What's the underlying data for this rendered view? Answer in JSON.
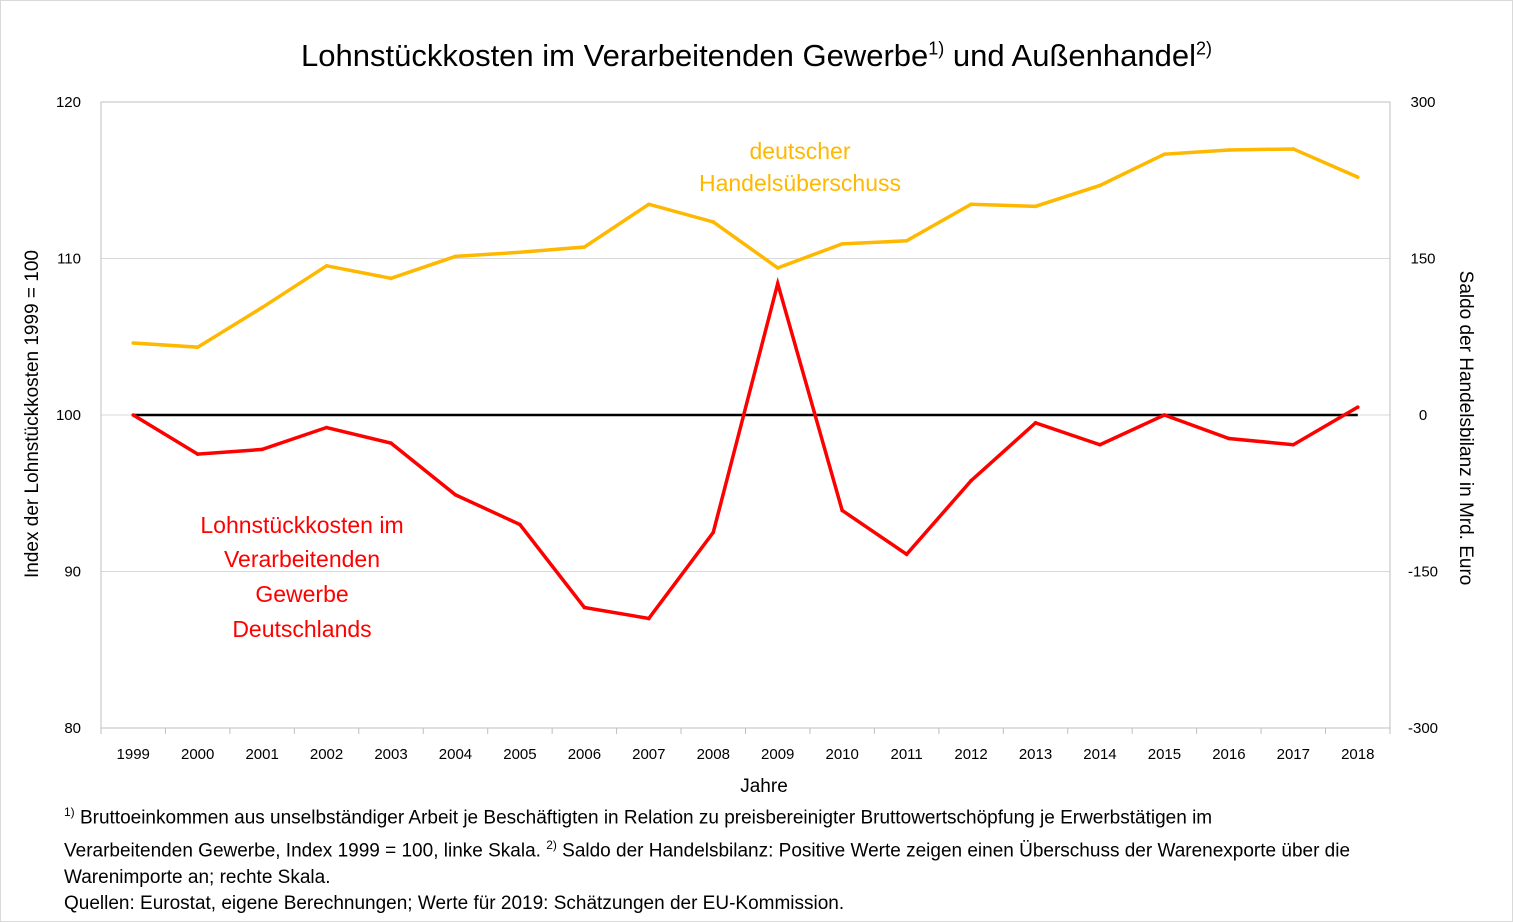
{
  "title": {
    "main": "Lohnstückkosten im Verarbeitenden Gewerbe",
    "sup1": "1)",
    "mid": " und Außenhandel",
    "sup2": "2)"
  },
  "chart_data": {
    "type": "line",
    "x": [
      "1999",
      "2000",
      "2001",
      "2002",
      "2003",
      "2004",
      "2005",
      "2006",
      "2007",
      "2008",
      "2009",
      "2010",
      "2011",
      "2012",
      "2013",
      "2014",
      "2015",
      "2016",
      "2017",
      "2018"
    ],
    "xlabel": "Jahre",
    "ylabel_left": "Index der Lohnstückkosten 1999 = 100",
    "ylabel_right": "Saldo der Handelsbilanz in Mrd. Euro",
    "ylim_left": [
      80,
      120
    ],
    "ylim_right": [
      -300,
      300
    ],
    "yticks_left": [
      "120",
      "110",
      "100",
      "90",
      "80"
    ],
    "yticks_right": [
      "300",
      "150",
      "0",
      "-150",
      "-300"
    ],
    "grid": true,
    "series": [
      {
        "name": "Lohnstückkosten im Verarbeitenden Gewerbe Deutschlands",
        "axis": "left",
        "color": "#ff0000",
        "values": [
          100.0,
          97.5,
          97.8,
          99.2,
          98.2,
          94.9,
          93.0,
          87.7,
          87.0,
          92.5,
          108.4,
          93.9,
          91.1,
          95.8,
          99.5,
          98.1,
          100.0,
          98.5,
          98.1,
          100.5
        ]
      },
      {
        "name": "deutscher Handelsüberschuss",
        "axis": "right",
        "color": "#ffb800",
        "values": [
          69,
          65,
          103,
          143,
          131,
          152,
          156,
          161,
          202,
          185,
          141,
          164,
          167,
          202,
          200,
          220,
          250,
          254,
          255,
          228
        ]
      }
    ],
    "zero_line_color": "#000000",
    "annotations": {
      "yellow": [
        "deutscher",
        "Handelsüberschuss"
      ],
      "red": [
        "Lohnstückkosten im",
        "Verarbeitenden",
        "Gewerbe",
        "Deutschlands"
      ]
    }
  },
  "footnotes": {
    "sup1": "1)",
    "line1": "Bruttoeinkommen aus unselbständiger Arbeit je Beschäftigten in Relation zu preisbereinigter Bruttowertschöpfung je Erwerbstätigen im",
    "line2a": "Verarbeitenden Gewerbe, Index 1999 = 100, linke Skala. ",
    "sup2": "2)",
    "line2b": " Saldo der Handelsbilanz: Positive Werte zeigen einen Überschuss der Warenexporte über die",
    "line3": "Warenimporte an; rechte Skala.",
    "line4": "Quellen: Eurostat, eigene Berechnungen; Werte für 2019: Schätzungen der EU-Kommission."
  }
}
